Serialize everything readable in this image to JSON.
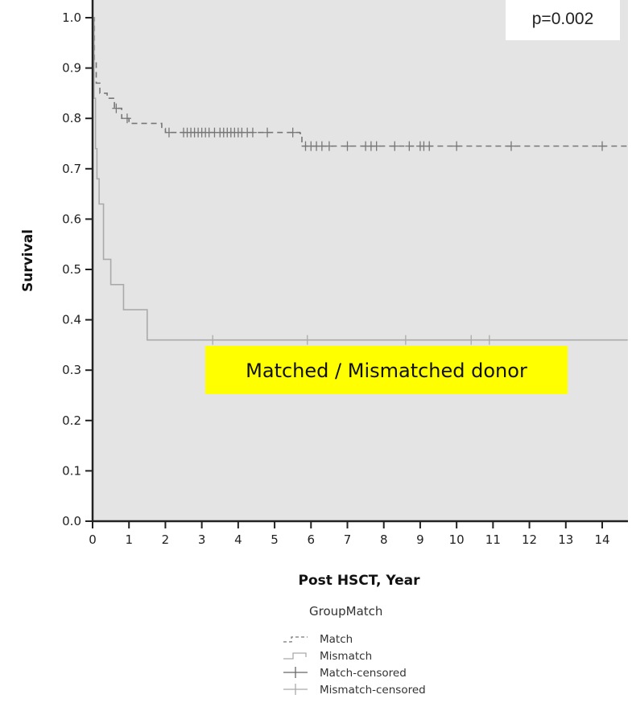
{
  "chart_data": {
    "type": "line",
    "xlabel": "Post HSCT, Year",
    "ylabel": "Survival",
    "xlim": [
      0,
      14.7
    ],
    "ylim": [
      0,
      1.0
    ],
    "x_ticks": [
      "0",
      "1",
      "2",
      "3",
      "4",
      "5",
      "6",
      "7",
      "8",
      "9",
      "10",
      "11",
      "12",
      "13",
      "14"
    ],
    "y_ticks": [
      "0.0",
      "0.1",
      "0.2",
      "0.3",
      "0.4",
      "0.5",
      "0.6",
      "0.7",
      "0.8",
      "0.9",
      "1.0"
    ],
    "p_value_label": "p=0.002",
    "annotation": "Matched / Mismatched donor",
    "legend_title": "GroupMatch",
    "legend_position": "bottom",
    "grid": false,
    "background_color": "#e4e4e4",
    "annotation_color": "#ffff00",
    "series": [
      {
        "name": "Match",
        "style": "dashed",
        "color": "#777777",
        "steps": [
          [
            0,
            1.0
          ],
          [
            0.05,
            0.91
          ],
          [
            0.1,
            0.87
          ],
          [
            0.2,
            0.85
          ],
          [
            0.4,
            0.84
          ],
          [
            0.6,
            0.82
          ],
          [
            0.8,
            0.8
          ],
          [
            1.0,
            0.79
          ],
          [
            1.9,
            0.78
          ],
          [
            2.0,
            0.772
          ],
          [
            5.7,
            0.77
          ],
          [
            5.75,
            0.745
          ],
          [
            14.7,
            0.745
          ]
        ],
        "censored_x": [
          0.65,
          0.95,
          2.1,
          2.5,
          2.6,
          2.7,
          2.8,
          2.9,
          3.0,
          3.1,
          3.2,
          3.35,
          3.5,
          3.6,
          3.7,
          3.8,
          3.9,
          4.0,
          4.1,
          4.25,
          4.4,
          4.8,
          5.5,
          5.85,
          6.0,
          6.15,
          6.3,
          6.5,
          7.0,
          7.5,
          7.65,
          7.8,
          8.3,
          8.7,
          9.0,
          9.1,
          9.25,
          10.0,
          11.5,
          14.0
        ]
      },
      {
        "name": "Mismatch",
        "style": "solid",
        "color": "#aaaaaa",
        "steps": [
          [
            0,
            1.0
          ],
          [
            0.04,
            0.84
          ],
          [
            0.08,
            0.74
          ],
          [
            0.12,
            0.68
          ],
          [
            0.18,
            0.63
          ],
          [
            0.3,
            0.52
          ],
          [
            0.5,
            0.47
          ],
          [
            0.85,
            0.42
          ],
          [
            1.5,
            0.36
          ],
          [
            14.7,
            0.36
          ]
        ],
        "censored_x": [
          3.3,
          5.9,
          8.6,
          10.4,
          10.9
        ]
      }
    ],
    "legend_entries": [
      {
        "label": "Match",
        "swatch": "dashed-step"
      },
      {
        "label": "Mismatch",
        "swatch": "solid-step"
      },
      {
        "label": "Match-censored",
        "swatch": "cross-dark"
      },
      {
        "label": "Mismatch-censored",
        "swatch": "cross-light"
      }
    ]
  }
}
